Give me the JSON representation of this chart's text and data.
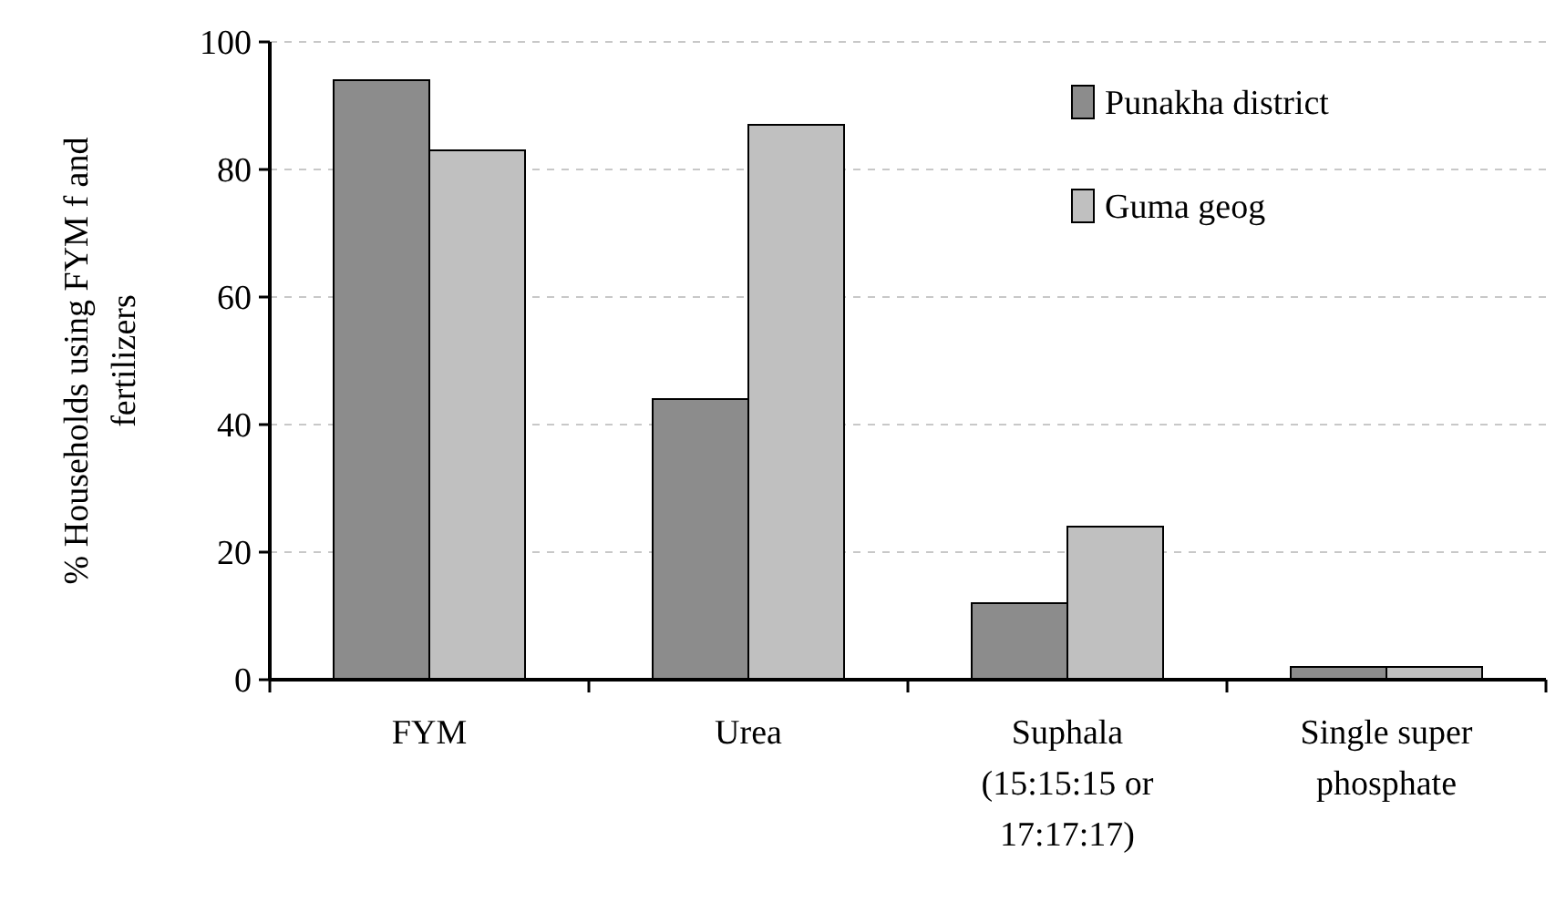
{
  "chart_data": {
    "type": "bar",
    "ylabel": "% Households using FYM f and fertilizers",
    "categories": [
      "FYM",
      "Urea",
      "Suphala (15:15:15 or 17:17:17)",
      "Single super phosphate"
    ],
    "series": [
      {
        "name": "Punakha district",
        "color": "#8c8c8c",
        "values": [
          94,
          44,
          12,
          2
        ]
      },
      {
        "name": "Guma geog",
        "color": "#c0c0c0",
        "values": [
          83,
          87,
          24,
          2
        ]
      }
    ],
    "ylim": [
      0,
      100
    ],
    "yticks": [
      0,
      20,
      40,
      60,
      80,
      100
    ],
    "grid": "y",
    "legend": "top right"
  }
}
